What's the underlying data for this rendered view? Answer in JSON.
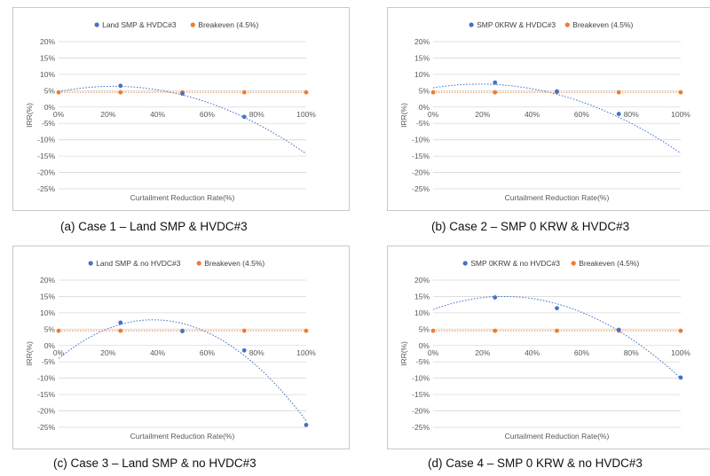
{
  "chart_data": [
    {
      "type": "scatter",
      "caption": "(a) Case 1 – Land SMP & HVDC#3",
      "xlabel": "Curtailment Reduction Rate(%)",
      "ylabel": "IRR(%)",
      "xlim": [
        0,
        100
      ],
      "ylim": [
        -25,
        20
      ],
      "x_ticks": [
        "0%",
        "20%",
        "40%",
        "60%",
        "80%",
        "100%"
      ],
      "y_ticks": [
        "20%",
        "15%",
        "10%",
        "5%",
        "0%",
        "-5%",
        "-10%",
        "-15%",
        "-20%",
        "-25%"
      ],
      "grid": "horizontal",
      "legend_position": "top",
      "series": [
        {
          "name": "Land SMP & HVDC#3",
          "color": "#4472C4",
          "x": [
            25,
            50,
            75
          ],
          "y": [
            6.5,
            4.1,
            -3.0
          ],
          "trendline": "polynomial",
          "trend_x": [
            0,
            100
          ],
          "trend_coeffs": [
            4.7,
            0.15,
            -0.0034
          ]
        },
        {
          "name": "Breakeven (4.5%)",
          "color": "#ED7D31",
          "x": [
            0,
            25,
            50,
            75,
            100
          ],
          "y": [
            4.5,
            4.5,
            4.5,
            4.5,
            4.5
          ],
          "line": "dotted"
        }
      ]
    },
    {
      "type": "scatter",
      "caption": "(b) Case 2 – SMP 0 KRW & HVDC#3",
      "xlabel": "Curtailment Reduction Rate(%)",
      "ylabel": "IRR(%)",
      "xlim": [
        0,
        100
      ],
      "ylim": [
        -25,
        20
      ],
      "x_ticks": [
        "0%",
        "20%",
        "40%",
        "60%",
        "80%",
        "100%"
      ],
      "y_ticks": [
        "20%",
        "15%",
        "10%",
        "5%",
        "0%",
        "-5%",
        "-10%",
        "-15%",
        "-20%",
        "-25%"
      ],
      "grid": "horizontal",
      "legend_position": "top",
      "series": [
        {
          "name": "SMP 0KRW & HVDC#3",
          "color": "#4472C4",
          "x": [
            25,
            50,
            75
          ],
          "y": [
            7.5,
            4.8,
            -2.1
          ],
          "trendline": "polynomial",
          "trend_x": [
            0,
            100
          ],
          "trend_coeffs": [
            5.9,
            0.12,
            -0.0032
          ]
        },
        {
          "name": "Breakeven (4.5%)",
          "color": "#ED7D31",
          "x": [
            0,
            25,
            50,
            75,
            100
          ],
          "y": [
            4.5,
            4.5,
            4.5,
            4.5,
            4.5
          ],
          "line": "dotted"
        }
      ]
    },
    {
      "type": "scatter",
      "caption": "(c) Case 3 – Land SMP & no HVDC#3",
      "xlabel": "Curtailment Reduction Rate(%)",
      "ylabel": "IRR(%)",
      "xlim": [
        0,
        100
      ],
      "ylim": [
        -25,
        20
      ],
      "x_ticks": [
        "0%",
        "20%",
        "40%",
        "60%",
        "80%",
        "100%"
      ],
      "y_ticks": [
        "20%",
        "15%",
        "10%",
        "5%",
        "0%",
        "-5%",
        "-10%",
        "-15%",
        "-20%",
        "-25%"
      ],
      "grid": "horizontal",
      "legend_position": "top",
      "series": [
        {
          "name": "Land SMP & no HVDC#3",
          "color": "#4472C4",
          "x": [
            25,
            50,
            75,
            100
          ],
          "y": [
            7.0,
            4.4,
            -1.5,
            -24.3
          ],
          "trendline": "polynomial",
          "trend_x": [
            0,
            100
          ],
          "trend_coeffs": [
            -4.0,
            0.62,
            -0.0081
          ]
        },
        {
          "name": "Breakeven (4.5%)",
          "color": "#ED7D31",
          "x": [
            0,
            25,
            50,
            75,
            100
          ],
          "y": [
            4.5,
            4.5,
            4.5,
            4.5,
            4.5
          ],
          "line": "dotted"
        }
      ]
    },
    {
      "type": "scatter",
      "caption": "(d) Case 4 – SMP 0 KRW & no HVDC#3",
      "xlabel": "Curtailment Reduction Rate(%)",
      "ylabel": "IRR(%)",
      "xlim": [
        0,
        100
      ],
      "ylim": [
        -25,
        20
      ],
      "x_ticks": [
        "0%",
        "20%",
        "40%",
        "60%",
        "80%",
        "100%"
      ],
      "y_ticks": [
        "20%",
        "15%",
        "10%",
        "5%",
        "0%",
        "-5%",
        "-10%",
        "-15%",
        "-20%",
        "-25%"
      ],
      "grid": "horizontal",
      "legend_position": "top",
      "series": [
        {
          "name": "SMP 0KRW & no HVDC#3",
          "color": "#4472C4",
          "x": [
            25,
            50,
            75,
            100
          ],
          "y": [
            14.7,
            11.4,
            4.8,
            -9.8
          ],
          "trendline": "polynomial",
          "trend_x": [
            0,
            100
          ],
          "trend_coeffs": [
            11.0,
            0.28,
            -0.0049
          ]
        },
        {
          "name": "Breakeven (4.5%)",
          "color": "#ED7D31",
          "x": [
            0,
            25,
            50,
            75,
            100
          ],
          "y": [
            4.5,
            4.5,
            4.5,
            4.5,
            4.5
          ],
          "line": "dotted"
        }
      ]
    }
  ]
}
